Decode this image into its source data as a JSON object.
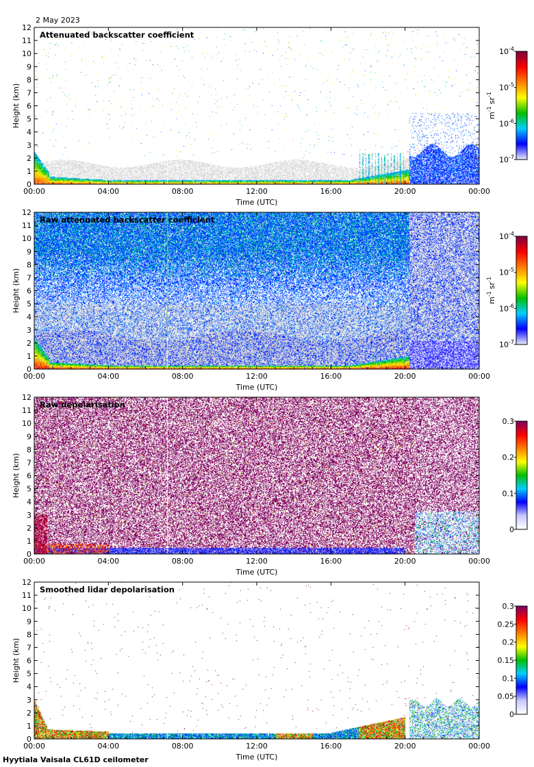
{
  "figure": {
    "date": "2 May 2023",
    "footer": "Hyytiala Vaisala CL61D ceilometer"
  },
  "chart_data": [
    {
      "type": "heatmap",
      "title": "Attenuated backscatter coefficient",
      "xlabel": "Time (UTC)",
      "ylabel": "Height (km)",
      "x_ticks": [
        "00:00",
        "04:00",
        "08:00",
        "12:00",
        "16:00",
        "20:00",
        "00:00"
      ],
      "x_range_hours": [
        0,
        24
      ],
      "y_ticks": [
        0,
        1,
        2,
        3,
        4,
        5,
        6,
        7,
        8,
        9,
        10,
        11,
        12
      ],
      "ylim": [
        0,
        12
      ],
      "colorbar": {
        "scale": "log",
        "range": [
          1e-07,
          0.0001
        ],
        "tick_values": [
          1e-07,
          1e-06,
          1e-05,
          0.0001
        ],
        "tick_labels": [
          {
            "base": "10",
            "exp": "-7"
          },
          {
            "base": "10",
            "exp": "-6"
          },
          {
            "base": "10",
            "exp": "-5"
          },
          {
            "base": "10",
            "exp": "-4"
          }
        ],
        "unit": {
          "a": "m",
          "a_exp": "-1",
          "b": "sr",
          "b_exp": "-1"
        }
      },
      "colormap": [
        "#e8e8ff",
        "#0000ff",
        "#00d0ff",
        "#00c000",
        "#ffff00",
        "#ff8000",
        "#ff0000",
        "#800040"
      ],
      "noise_color": "#d8d8d8",
      "scene": "sparse",
      "surface_layer": {
        "top_km": [
          2.2,
          1.0,
          0.35,
          0.25,
          0.3,
          0.3,
          0.3,
          0.3,
          0.3,
          0.3,
          0.35,
          0.5,
          0.6,
          0.7,
          0.9,
          2.3,
          2.2
        ],
        "hours": [
          0,
          0.5,
          1.5,
          4,
          6,
          8,
          10,
          12,
          13.5,
          15,
          16.5,
          17.5,
          18.5,
          19,
          19.5,
          20,
          24
        ]
      }
    },
    {
      "type": "heatmap",
      "title": "Raw attenuated backscatter coefficient",
      "xlabel": "Time (UTC)",
      "ylabel": "Height (km)",
      "x_ticks": [
        "00:00",
        "04:00",
        "08:00",
        "12:00",
        "16:00",
        "20:00",
        "00:00"
      ],
      "x_range_hours": [
        0,
        24
      ],
      "y_ticks": [
        0,
        1,
        2,
        3,
        4,
        5,
        6,
        7,
        8,
        9,
        10,
        11,
        12
      ],
      "ylim": [
        0,
        12
      ],
      "colorbar": {
        "scale": "log",
        "range": [
          1e-07,
          0.0001
        ],
        "tick_values": [
          1e-07,
          1e-06,
          1e-05,
          0.0001
        ],
        "tick_labels": [
          {
            "base": "10",
            "exp": "-7"
          },
          {
            "base": "10",
            "exp": "-6"
          },
          {
            "base": "10",
            "exp": "-5"
          },
          {
            "base": "10",
            "exp": "-4"
          }
        ],
        "unit": {
          "a": "m",
          "a_exp": "-1",
          "b": "sr",
          "b_exp": "-1"
        }
      },
      "colormap": [
        "#e8e8ff",
        "#0000ff",
        "#00d0ff",
        "#00c000",
        "#ffff00",
        "#ff8000",
        "#ff0000",
        "#800040"
      ],
      "noise_color": "#d8d8d8",
      "scene": "dense"
    },
    {
      "type": "heatmap",
      "title": "Raw depolarisation",
      "xlabel": "Time (UTC)",
      "ylabel": "Height (km)",
      "x_ticks": [
        "00:00",
        "04:00",
        "08:00",
        "12:00",
        "16:00",
        "20:00",
        "00:00"
      ],
      "x_range_hours": [
        0,
        24
      ],
      "y_ticks": [
        0,
        1,
        2,
        3,
        4,
        5,
        6,
        7,
        8,
        9,
        10,
        11,
        12
      ],
      "ylim": [
        0,
        12
      ],
      "colorbar": {
        "scale": "linear",
        "range": [
          0,
          0.3
        ],
        "tick_values": [
          0,
          0.1,
          0.2,
          0.3
        ],
        "tick_labels": [
          "0",
          "0.1",
          "0.2",
          "0.3"
        ]
      },
      "colormap": [
        "#ffffff",
        "#c8c8ff",
        "#0000ff",
        "#00d0ff",
        "#00c000",
        "#ffff00",
        "#ff8000",
        "#ff0000",
        "#800060"
      ],
      "scene": "depol_raw"
    },
    {
      "type": "heatmap",
      "title": "Smoothed lidar depolarisation",
      "xlabel": "Time (UTC)",
      "ylabel": "Height (km)",
      "x_ticks": [
        "00:00",
        "04:00",
        "08:00",
        "12:00",
        "16:00",
        "20:00",
        "00:00"
      ],
      "x_range_hours": [
        0,
        24
      ],
      "y_ticks": [
        0,
        1,
        2,
        3,
        4,
        5,
        6,
        7,
        8,
        9,
        10,
        11,
        12
      ],
      "ylim": [
        0,
        12
      ],
      "colorbar": {
        "scale": "linear",
        "range": [
          0,
          0.3
        ],
        "tick_values": [
          0,
          0.05,
          0.1,
          0.15,
          0.2,
          0.25,
          0.3
        ],
        "tick_labels": [
          "0",
          "0.05",
          "0.1",
          "0.15",
          "0.2",
          "0.25",
          "0.3"
        ]
      },
      "colormap": [
        "#ffffff",
        "#c8c8ff",
        "#0000ff",
        "#00d0ff",
        "#00c000",
        "#ffff00",
        "#ff8000",
        "#ff0000",
        "#800060"
      ],
      "scene": "depol_smooth"
    }
  ]
}
